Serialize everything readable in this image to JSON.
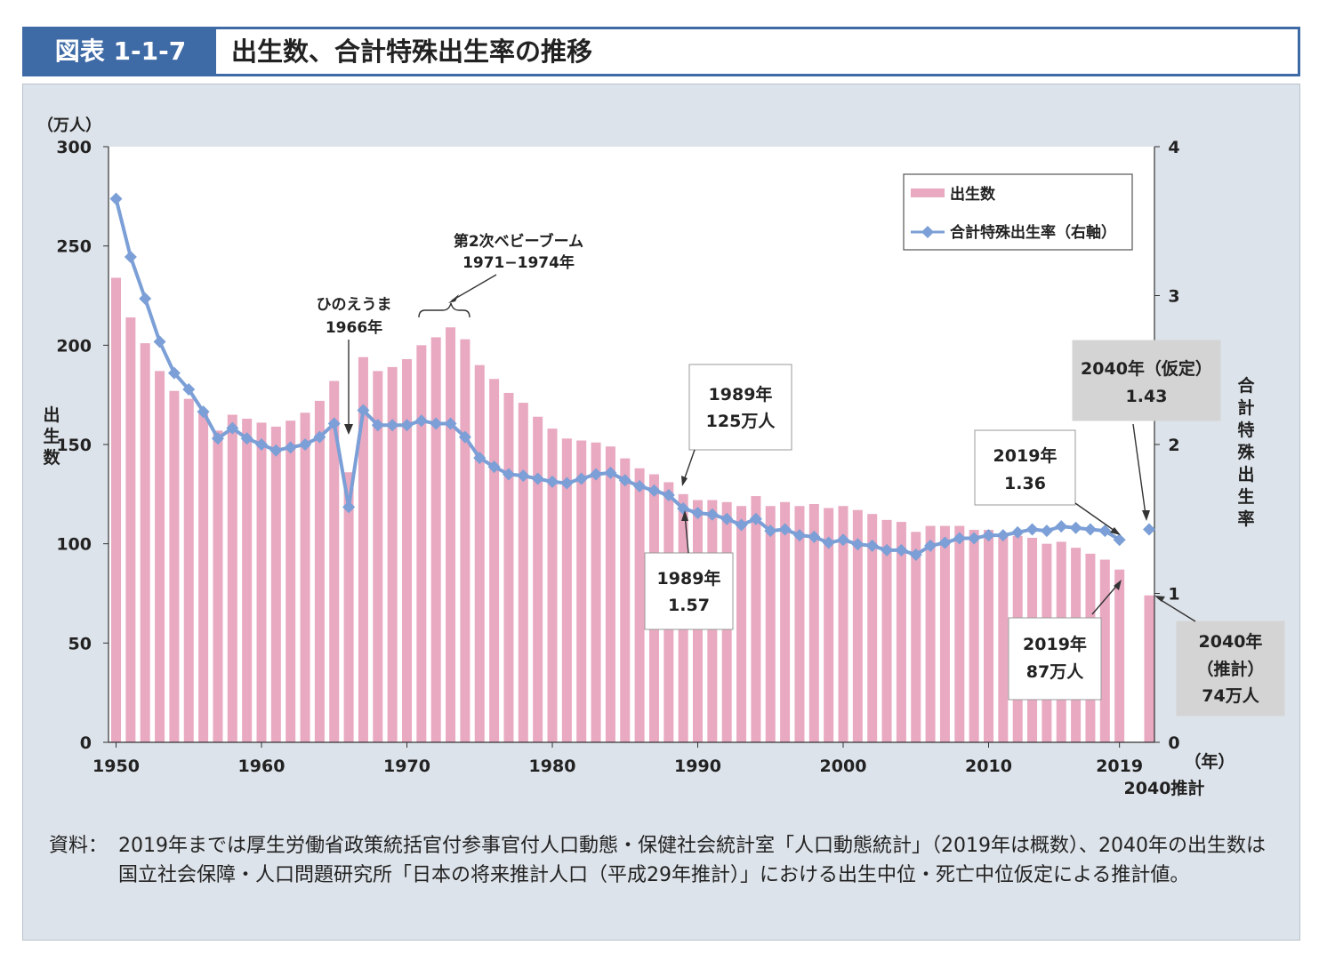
{
  "header": {
    "figure_label": "図表 1-1-7",
    "title": "出生数、合計特殊出生率の推移"
  },
  "colors": {
    "bar": "#e8a9c1",
    "line": "#7b9fd6",
    "panel_bg": "#dde3ea",
    "header_blue": "#3e6aa6"
  },
  "chart_data": {
    "type": "bar",
    "left_axis": {
      "unit": "（万人）",
      "label": "出生数",
      "ticks": [
        "0",
        "50",
        "100",
        "150",
        "200",
        "250",
        "300"
      ],
      "ylim": [
        0,
        300
      ]
    },
    "right_axis": {
      "label": "合計特殊出生率",
      "ticks": [
        "0",
        "1",
        "2",
        "3",
        "4"
      ],
      "ylim": [
        0,
        4
      ]
    },
    "x_axis": {
      "unit": "（年）",
      "ticks": [
        "1950",
        "1960",
        "1970",
        "1980",
        "1990",
        "2000",
        "2010",
        "2019"
      ],
      "extra_tick": "2040推計"
    },
    "grid": false,
    "legend": {
      "placement": "top-right",
      "items": [
        {
          "label": "出生数",
          "icon": "pink-bar"
        },
        {
          "label": "合計特殊出生率（右軸）",
          "icon": "blue-diamond-line"
        }
      ]
    },
    "years": [
      1950,
      1951,
      1952,
      1953,
      1954,
      1955,
      1956,
      1957,
      1958,
      1959,
      1960,
      1961,
      1962,
      1963,
      1964,
      1965,
      1966,
      1967,
      1968,
      1969,
      1970,
      1971,
      1972,
      1973,
      1974,
      1975,
      1976,
      1977,
      1978,
      1979,
      1980,
      1981,
      1982,
      1983,
      1984,
      1985,
      1986,
      1987,
      1988,
      1989,
      1990,
      1991,
      1992,
      1993,
      1994,
      1995,
      1996,
      1997,
      1998,
      1999,
      2000,
      2001,
      2002,
      2003,
      2004,
      2005,
      2006,
      2007,
      2008,
      2009,
      2010,
      2011,
      2012,
      2013,
      2014,
      2015,
      2016,
      2017,
      2018,
      2019
    ],
    "series": [
      {
        "name": "出生数",
        "axis": "left",
        "values": [
          234,
          214,
          201,
          187,
          177,
          173,
          167,
          157,
          165,
          163,
          161,
          159,
          162,
          166,
          172,
          182,
          136,
          194,
          187,
          189,
          193,
          200,
          204,
          209,
          203,
          190,
          183,
          176,
          171,
          164,
          158,
          153,
          152,
          151,
          149,
          143,
          138,
          135,
          131,
          125,
          122,
          122,
          121,
          119,
          124,
          119,
          121,
          119,
          120,
          118,
          119,
          117,
          115,
          112,
          111,
          106,
          109,
          109,
          109,
          107,
          107,
          105,
          104,
          103,
          100,
          101,
          98,
          95,
          92,
          87
        ],
        "projection": {
          "x": "2040推計",
          "value": 74
        }
      },
      {
        "name": "合計特殊出生率（右軸）",
        "axis": "right",
        "values": [
          3.65,
          3.26,
          2.98,
          2.69,
          2.48,
          2.37,
          2.22,
          2.04,
          2.11,
          2.04,
          2.0,
          1.96,
          1.98,
          2.0,
          2.05,
          2.14,
          1.58,
          2.23,
          2.13,
          2.13,
          2.13,
          2.16,
          2.14,
          2.14,
          2.05,
          1.91,
          1.85,
          1.8,
          1.79,
          1.77,
          1.75,
          1.74,
          1.77,
          1.8,
          1.81,
          1.76,
          1.72,
          1.69,
          1.66,
          1.57,
          1.54,
          1.53,
          1.5,
          1.46,
          1.5,
          1.42,
          1.43,
          1.39,
          1.38,
          1.34,
          1.36,
          1.33,
          1.32,
          1.29,
          1.29,
          1.26,
          1.32,
          1.34,
          1.37,
          1.37,
          1.39,
          1.39,
          1.41,
          1.43,
          1.42,
          1.45,
          1.44,
          1.43,
          1.42,
          1.36
        ],
        "projection": {
          "x": "2040推計",
          "value": 1.43
        }
      }
    ],
    "annotations": [
      {
        "id": "babyboom",
        "lines": [
          "第2次ベビーブーム",
          "1971−1974年"
        ]
      },
      {
        "id": "hinoe",
        "lines": [
          "ひのえうま",
          "1966年"
        ]
      },
      {
        "id": "b1989",
        "lines": [
          "1989年",
          "125万人"
        ]
      },
      {
        "id": "t1989",
        "lines": [
          "1989年",
          "1.57"
        ]
      },
      {
        "id": "t2019",
        "lines": [
          "2019年",
          "1.36"
        ]
      },
      {
        "id": "t2040",
        "lines": [
          "2040年（仮定）",
          "1.43"
        ]
      },
      {
        "id": "b2019",
        "lines": [
          "2019年",
          "87万人"
        ]
      },
      {
        "id": "b2040",
        "lines": [
          "2040年",
          "（推計）",
          "74万人"
        ]
      }
    ]
  },
  "source_note": {
    "label": "資料：",
    "text": "2019年までは厚生労働省政策統括官付参事官付人口動態・保健社会統計室「人口動態統計」（2019年は概数）、2040年の出生数は国立社会保障・人口問題研究所「日本の将来推計人口（平成29年推計）」における出生中位・死亡中位仮定による推計値。"
  }
}
